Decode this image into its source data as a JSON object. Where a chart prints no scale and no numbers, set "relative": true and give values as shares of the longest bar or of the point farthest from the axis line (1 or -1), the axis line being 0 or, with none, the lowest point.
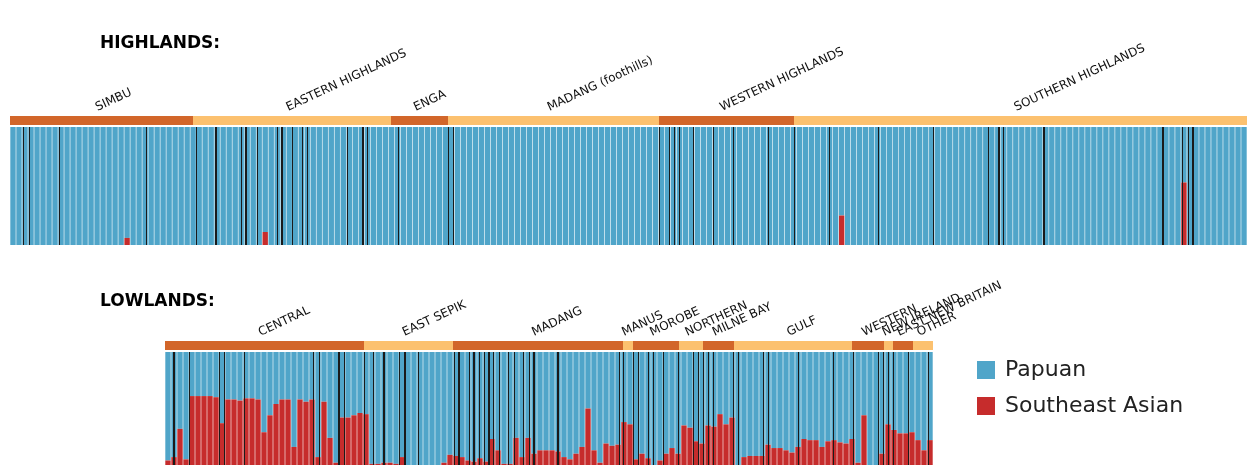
{
  "chart_data": [
    {
      "type": "bar",
      "title": "HIGHLANDS:",
      "stacked": true,
      "relative": true,
      "tick_labels": false,
      "grid": false,
      "legend": false,
      "annotations": [
        "SIMBU",
        "EASTERN HIGHLANDS",
        "ENGA",
        "MADANG (foothills)",
        "WESTERN HIGHLANDS",
        "SOUTHERN HIGHLANDS"
      ],
      "categories": [
        null,
        null,
        null,
        null,
        null,
        null,
        null,
        null,
        null,
        null,
        null,
        null,
        null,
        null,
        null,
        null,
        null,
        null,
        null,
        null,
        null,
        null,
        null,
        null,
        null,
        null,
        null,
        null,
        null,
        null,
        null,
        null,
        null,
        null,
        null,
        null,
        null,
        null,
        null,
        null,
        null,
        null,
        null,
        null,
        null,
        null,
        null,
        null,
        null,
        null,
        null,
        null,
        null,
        null,
        null,
        null,
        null,
        null,
        null,
        null,
        null,
        null,
        null,
        null,
        null,
        null,
        null,
        null,
        null,
        null,
        null,
        null,
        null,
        null,
        null,
        null,
        null,
        null,
        null,
        null,
        null,
        null,
        null,
        null,
        null,
        null,
        null,
        null,
        null,
        null,
        null,
        null,
        null,
        null,
        null,
        null,
        null,
        null,
        null,
        null,
        null,
        null,
        null,
        null,
        null,
        null,
        null,
        null,
        null,
        null,
        null,
        null,
        null,
        null,
        null,
        null,
        null,
        null,
        null,
        null,
        null,
        null,
        null,
        null,
        null,
        null,
        null,
        null,
        null,
        null,
        null,
        null,
        null,
        null,
        null,
        null,
        null,
        null,
        null,
        null,
        null,
        null,
        null,
        null,
        null,
        null,
        null,
        null,
        null,
        null,
        null,
        null,
        null,
        null,
        null,
        null,
        null,
        null,
        null,
        null,
        null,
        null,
        null,
        null,
        null,
        null,
        null,
        null,
        null,
        null,
        null,
        null,
        null,
        null,
        null,
        null,
        null,
        null,
        null,
        null,
        null,
        null,
        null,
        null,
        null,
        null,
        null,
        null,
        null,
        null,
        null,
        null,
        null,
        null,
        null,
        null,
        null,
        null,
        null,
        null,
        null,
        null,
        null,
        null,
        null,
        null
      ],
      "series": [
        {
          "color": "#c62c2c",
          "values": [
            0,
            0,
            0,
            0,
            0,
            0,
            0,
            0,
            0,
            0,
            0,
            0,
            0,
            0,
            0,
            0,
            0,
            0,
            0,
            0.06,
            0,
            0,
            0,
            0,
            0,
            0,
            0,
            0,
            0,
            0,
            0,
            0,
            0,
            0,
            0,
            0,
            0,
            0,
            0,
            0,
            0,
            0,
            0.11,
            0,
            0,
            0,
            0,
            0,
            0,
            0,
            0,
            0,
            0,
            0,
            0,
            0,
            0,
            0,
            0,
            0,
            0,
            0,
            0,
            0,
            0,
            0,
            0,
            0,
            0,
            0,
            0,
            0,
            0,
            0,
            0,
            0,
            0,
            0,
            0,
            0,
            0,
            0,
            0,
            0,
            0,
            0,
            0,
            0,
            0,
            0,
            0,
            0,
            0,
            0,
            0,
            0,
            0,
            0,
            0,
            0,
            0,
            0,
            0,
            0,
            0,
            0,
            0,
            0,
            0,
            0,
            0,
            0,
            0,
            0,
            0,
            0,
            0,
            0,
            0,
            0,
            0,
            0,
            0,
            0,
            0,
            0,
            0,
            0,
            0,
            0,
            0,
            0,
            0,
            0,
            0,
            0,
            0,
            0,
            0.25,
            0,
            0,
            0,
            0,
            0,
            0,
            0,
            0,
            0,
            0,
            0,
            0,
            0,
            0,
            0,
            0,
            0,
            0,
            0,
            0,
            0,
            0,
            0,
            0,
            0,
            0,
            0,
            0,
            0,
            0,
            0,
            0,
            0,
            0,
            0,
            0,
            0,
            0,
            0,
            0,
            0,
            0,
            0,
            0,
            0,
            0,
            0,
            0,
            0,
            0,
            0,
            0,
            0,
            0,
            0,
            0,
            0.53,
            0,
            0,
            0,
            0,
            0,
            0,
            0,
            0,
            0,
            0
          ]
        },
        {
          "color": "#50a5c9",
          "values": [
            1,
            1,
            1,
            1,
            1,
            1,
            1,
            1,
            1,
            1,
            1,
            1,
            1,
            1,
            1,
            1,
            1,
            1,
            1,
            0.94,
            1,
            1,
            1,
            1,
            1,
            1,
            1,
            1,
            1,
            1,
            1,
            1,
            1,
            1,
            1,
            1,
            1,
            1,
            1,
            1,
            1,
            1,
            0.89,
            1,
            1,
            1,
            1,
            1,
            1,
            1,
            1,
            1,
            1,
            1,
            1,
            1,
            1,
            1,
            1,
            1,
            1,
            1,
            1,
            1,
            1,
            1,
            1,
            1,
            1,
            1,
            1,
            1,
            1,
            1,
            1,
            1,
            1,
            1,
            1,
            1,
            1,
            1,
            1,
            1,
            1,
            1,
            1,
            1,
            1,
            1,
            1,
            1,
            1,
            1,
            1,
            1,
            1,
            1,
            1,
            1,
            1,
            1,
            1,
            1,
            1,
            1,
            1,
            1,
            1,
            1,
            1,
            1,
            1,
            1,
            1,
            1,
            1,
            1,
            1,
            1,
            1,
            1,
            1,
            1,
            1,
            1,
            1,
            1,
            1,
            1,
            1,
            1,
            1,
            1,
            1,
            1,
            1,
            1,
            0.75,
            1,
            1,
            1,
            1,
            1,
            1,
            1,
            1,
            1,
            1,
            1,
            1,
            1,
            1,
            1,
            1,
            1,
            1,
            1,
            1,
            1,
            1,
            1,
            1,
            1,
            1,
            1,
            1,
            1,
            1,
            1,
            1,
            1,
            1,
            1,
            1,
            1,
            1,
            1,
            1,
            1,
            1,
            1,
            1,
            1,
            1,
            1,
            1,
            1,
            1,
            1,
            1,
            1,
            1,
            1,
            1,
            0.47,
            1,
            1,
            1,
            1,
            1,
            1,
            1,
            1,
            1,
            1
          ]
        }
      ]
    },
    {
      "type": "bar",
      "title": "LOWLANDS:",
      "stacked": true,
      "relative": true,
      "tick_labels": false,
      "grid": false,
      "legend": "right",
      "annotations": [
        "CENTRAL",
        "EAST SEPIK",
        "MADANG",
        "MANUS",
        "MOROBE",
        "NORTHERN",
        "MILNE BAY",
        "GULF",
        "WESTERN",
        "NEW IRELAND",
        "EAST NEW BRITAIN",
        "OTHER"
      ],
      "categories": [
        null,
        null,
        null,
        null,
        null,
        null,
        null,
        null,
        null,
        null,
        null,
        null,
        null,
        null,
        null,
        null,
        null,
        null,
        null,
        null,
        null,
        null,
        null,
        null,
        null,
        null,
        null,
        null,
        null,
        null,
        null,
        null,
        null,
        null,
        null,
        null,
        null,
        null,
        null,
        null,
        null,
        null,
        null,
        null,
        null,
        null,
        null,
        null,
        null,
        null,
        null,
        null,
        null,
        null,
        null,
        null,
        null,
        null,
        null,
        null,
        null,
        null,
        null,
        null,
        null,
        null,
        null,
        null,
        null,
        null,
        null,
        null,
        null,
        null,
        null,
        null,
        null,
        null,
        null,
        null,
        null,
        null,
        null,
        null,
        null,
        null,
        null,
        null,
        null,
        null,
        null,
        null,
        null,
        null,
        null,
        null,
        null,
        null,
        null,
        null,
        null,
        null,
        null,
        null,
        null,
        null,
        null,
        null,
        null,
        null,
        null,
        null,
        null,
        null,
        null,
        null,
        null,
        null,
        null,
        null,
        null,
        null,
        null,
        null,
        null,
        null,
        null,
        null
      ],
      "series": [
        {
          "name": "Southeast Asian",
          "color": "#c62c2c",
          "values": [
            0.04,
            0.07,
            0.32,
            0.05,
            0.61,
            0.61,
            0.61,
            0.61,
            0.6,
            0.37,
            0.58,
            0.58,
            0.57,
            0.59,
            0.59,
            0.58,
            0.29,
            0.44,
            0.54,
            0.58,
            0.58,
            0.16,
            0.58,
            0.56,
            0.58,
            0.07,
            0.56,
            0.24,
            0.02,
            0.42,
            0.42,
            0.44,
            0.46,
            0.45,
            0.01,
            0.01,
            0.02,
            0.02,
            0.01,
            0.07,
            0,
            0,
            0,
            0,
            0,
            0,
            0.02,
            0.09,
            0.08,
            0.07,
            0.04,
            0.03,
            0.06,
            0.03,
            0.23,
            0.13,
            0.01,
            0.01,
            0.24,
            0.07,
            0.24,
            0.1,
            0.13,
            0.13,
            0.13,
            0.12,
            0.07,
            0.05,
            0.1,
            0.16,
            0.5,
            0.13,
            0.02,
            0.19,
            0.17,
            0.18,
            0.38,
            0.36,
            0.05,
            0.1,
            0.06,
            0,
            0.04,
            0.1,
            0.15,
            0.1,
            0.35,
            0.33,
            0.21,
            0.19,
            0.35,
            0.34,
            0.45,
            0.36,
            0.42,
            0,
            0.07,
            0.08,
            0.08,
            0.08,
            0.18,
            0.15,
            0.15,
            0.13,
            0.11,
            0.16,
            0.23,
            0.22,
            0.22,
            0.16,
            0.21,
            0.22,
            0.2,
            0.19,
            0.23,
            0.02,
            0.44,
            0,
            0,
            0.1,
            0.36,
            0.31,
            0.28,
            0.28,
            0.29,
            0.22,
            0.13,
            0.22
          ]
        },
        {
          "name": "Papuan",
          "color": "#50a5c9",
          "values": [
            0.96,
            0.93,
            0.68,
            0.95,
            0.39,
            0.39,
            0.39,
            0.39,
            0.4,
            0.63,
            0.42,
            0.42,
            0.43,
            0.41,
            0.41,
            0.42,
            0.71,
            0.56,
            0.46,
            0.42,
            0.42,
            0.84,
            0.42,
            0.44,
            0.42,
            0.93,
            0.44,
            0.76,
            0.98,
            0.58,
            0.58,
            0.56,
            0.54,
            0.55,
            0.99,
            0.99,
            0.98,
            0.98,
            0.99,
            0.93,
            1,
            1,
            1,
            1,
            1,
            1,
            0.98,
            0.91,
            0.92,
            0.93,
            0.96,
            0.97,
            0.94,
            0.97,
            0.77,
            0.87,
            0.99,
            0.99,
            0.76,
            0.93,
            0.76,
            0.9,
            0.87,
            0.87,
            0.87,
            0.88,
            0.93,
            0.95,
            0.9,
            0.84,
            0.5,
            0.87,
            0.98,
            0.81,
            0.83,
            0.82,
            0.62,
            0.64,
            0.95,
            0.9,
            0.94,
            1,
            0.96,
            0.9,
            0.85,
            0.9,
            0.65,
            0.67,
            0.79,
            0.81,
            0.65,
            0.66,
            0.55,
            0.64,
            0.58,
            1,
            0.93,
            0.92,
            0.92,
            0.92,
            0.82,
            0.85,
            0.85,
            0.87,
            0.89,
            0.84,
            0.77,
            0.78,
            0.78,
            0.84,
            0.79,
            0.78,
            0.8,
            0.81,
            0.77,
            0.98,
            0.56,
            1,
            1,
            0.9,
            0.64,
            0.69,
            0.72,
            0.72,
            0.71,
            0.78,
            0.87,
            0.78
          ]
        }
      ]
    }
  ]
}
